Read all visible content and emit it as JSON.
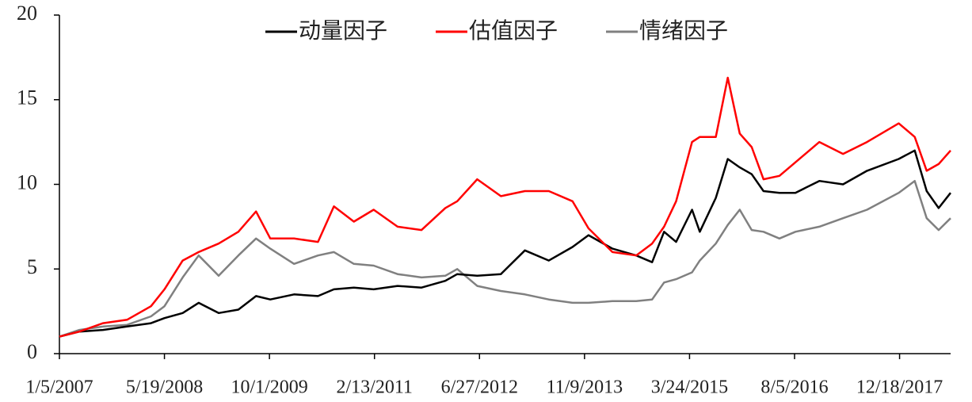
{
  "chart_data": {
    "type": "line",
    "x": [
      "1/5/2007",
      "4/10/2007",
      "8/1/2007",
      "11/23/2007",
      "3/16/2008",
      "5/19/2008",
      "8/14/2008",
      "10/29/2008",
      "2/1/2009",
      "5/6/2009",
      "7/29/2009",
      "10/5/2009",
      "1/26/2010",
      "5/20/2010",
      "8/4/2010",
      "11/7/2010",
      "2/9/2011",
      "6/3/2011",
      "9/25/2011",
      "1/16/2012",
      "3/13/2012",
      "6/16/2012",
      "10/7/2012",
      "1/29/2013",
      "5/23/2013",
      "9/13/2013",
      "11/28/2013",
      "3/22/2014",
      "7/13/2014",
      "9/27/2014",
      "11/23/2014",
      "1/19/2015",
      "4/5/2015",
      "5/12/2015",
      "7/27/2015",
      "9/22/2015",
      "11/18/2015",
      "1/14/2016",
      "3/10/2016",
      "5/25/2016",
      "8/9/2016",
      "12/1/2016",
      "3/24/2017",
      "7/16/2017",
      "12/14/2017",
      "2/28/2018",
      "4/26/2018",
      "6/22/2018",
      "8/18/2018"
    ],
    "series": [
      {
        "name": "动量因子",
        "color": "#000000",
        "values": [
          1.0,
          1.3,
          1.4,
          1.6,
          1.8,
          2.1,
          2.4,
          3.0,
          2.4,
          2.6,
          3.4,
          3.2,
          3.5,
          3.4,
          3.8,
          3.9,
          3.8,
          4.0,
          3.9,
          4.3,
          4.7,
          4.6,
          4.7,
          6.1,
          5.5,
          6.3,
          7.0,
          6.2,
          5.8,
          5.4,
          7.2,
          6.6,
          8.5,
          7.2,
          9.2,
          11.5,
          11.0,
          10.6,
          9.6,
          9.5,
          9.5,
          10.2,
          10.0,
          10.8,
          11.5,
          12.0,
          9.6,
          8.6,
          9.5
        ]
      },
      {
        "name": "估值因子",
        "color": "#ff0000",
        "values": [
          1.0,
          1.3,
          1.8,
          2.0,
          2.8,
          3.8,
          5.5,
          6.0,
          6.5,
          7.2,
          8.4,
          6.8,
          6.8,
          6.6,
          8.7,
          7.8,
          8.5,
          7.5,
          7.3,
          8.6,
          9.0,
          10.3,
          9.3,
          9.6,
          9.6,
          9.0,
          7.4,
          6.0,
          5.8,
          6.5,
          7.5,
          9.0,
          12.5,
          12.8,
          12.8,
          16.3,
          13.0,
          12.2,
          10.3,
          10.5,
          11.3,
          12.5,
          11.8,
          12.5,
          13.6,
          12.8,
          10.8,
          11.2,
          12.0
        ]
      },
      {
        "name": "情绪因子",
        "color": "#808080",
        "values": [
          1.0,
          1.4,
          1.6,
          1.7,
          2.2,
          2.8,
          4.5,
          5.8,
          4.6,
          5.8,
          6.8,
          6.2,
          5.3,
          5.8,
          6.0,
          5.3,
          5.2,
          4.7,
          4.5,
          4.6,
          5.0,
          4.0,
          3.7,
          3.5,
          3.2,
          3.0,
          3.0,
          3.1,
          3.1,
          3.2,
          4.2,
          4.4,
          4.8,
          5.5,
          6.5,
          7.6,
          8.5,
          7.3,
          7.2,
          6.8,
          7.2,
          7.5,
          8.0,
          8.5,
          9.5,
          10.2,
          8.0,
          7.3,
          8.0
        ]
      }
    ],
    "xlim": [
      "1/5/2007",
      "8/18/2018"
    ],
    "xticks": [
      "1/5/2007",
      "5/19/2008",
      "10/1/2009",
      "2/13/2011",
      "6/27/2012",
      "11/9/2013",
      "3/24/2015",
      "8/5/2016",
      "12/18/2017"
    ],
    "ylim": [
      0,
      20
    ],
    "yticks": [
      0,
      5,
      10,
      15,
      20
    ],
    "grid": false,
    "legend": "top"
  }
}
